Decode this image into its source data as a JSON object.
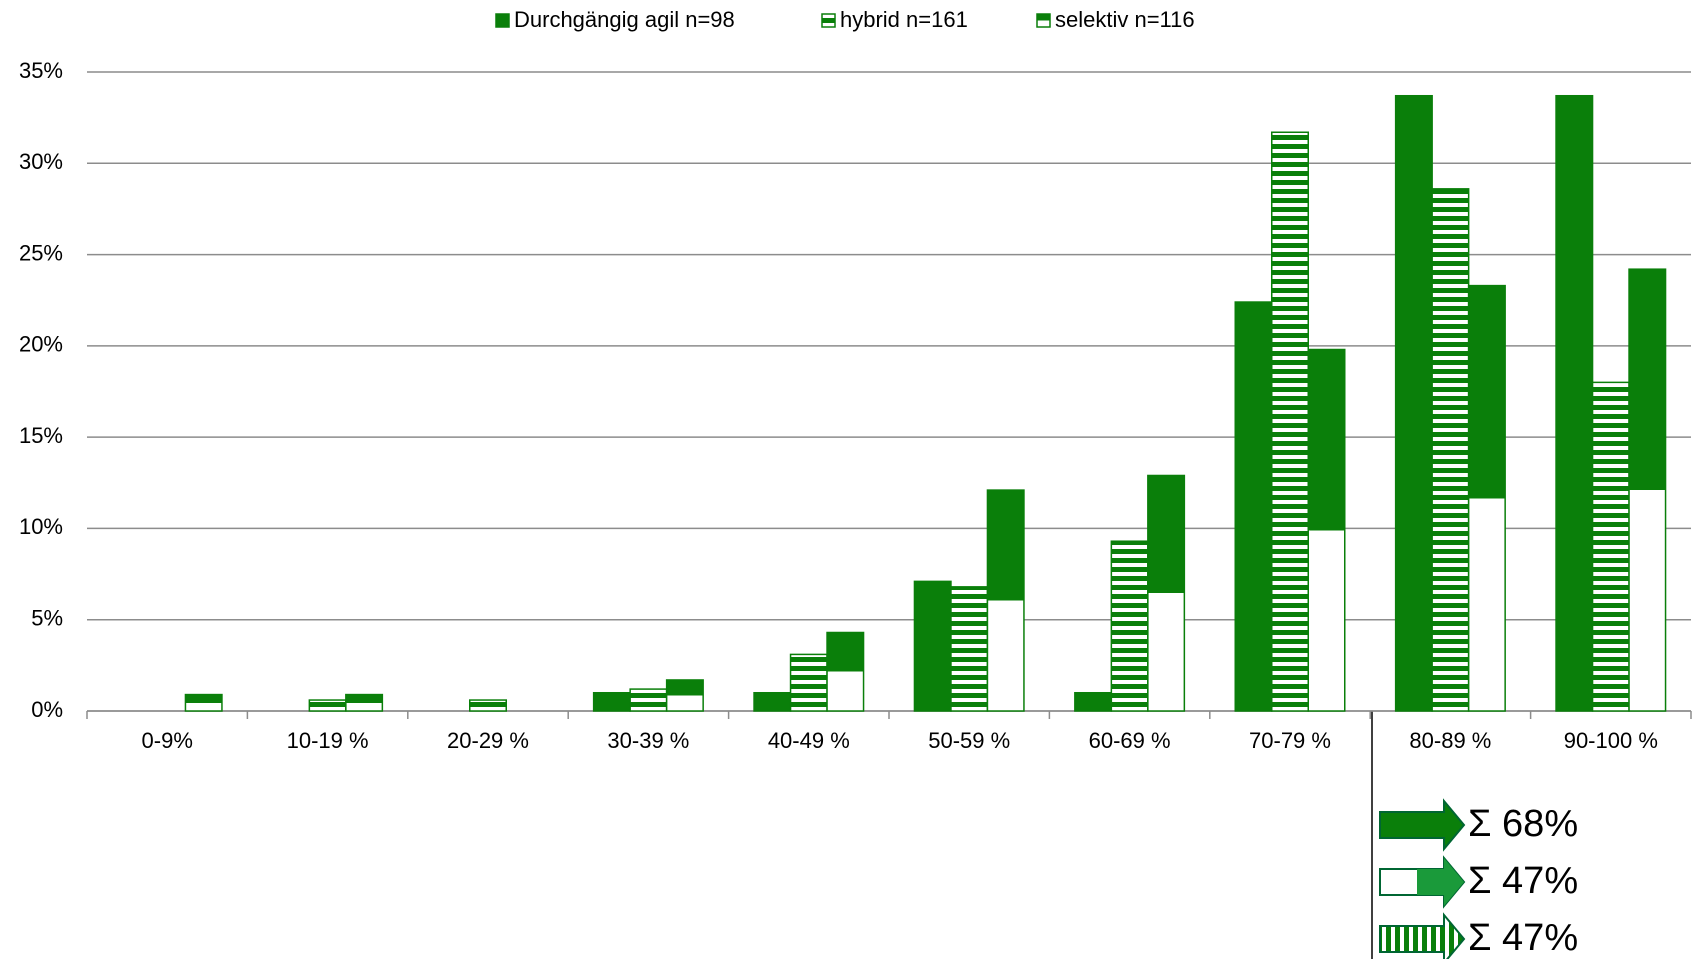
{
  "chart_data": {
    "type": "bar",
    "categories": [
      "0-9%",
      "10-19 %",
      "20-29 %",
      "30-39 %",
      "40-49 %",
      "50-59 %",
      "60-69 %",
      "70-79 %",
      "80-89 %",
      "90-100 %"
    ],
    "series": [
      {
        "name": "Durchgängig agil n=98",
        "color": "#0a7f0a",
        "pattern": "solid",
        "values": [
          0,
          0,
          0,
          1.0,
          1.0,
          7.1,
          1.0,
          22.4,
          33.7,
          33.7
        ]
      },
      {
        "name": "hybrid n=161",
        "color": "#0a7f0a",
        "pattern": "stripes",
        "values": [
          0,
          0.6,
          0.6,
          1.2,
          3.1,
          6.8,
          9.3,
          31.7,
          28.6,
          18.0
        ]
      },
      {
        "name": "selektiv n=116",
        "color": "#0a7f0a",
        "pattern": "half",
        "values": [
          0.9,
          0.9,
          0,
          1.7,
          4.3,
          12.1,
          12.9,
          19.8,
          23.3,
          24.2
        ]
      }
    ],
    "ylim": [
      0,
      35
    ],
    "yticks": [
      {
        "value": 0,
        "label": "0%"
      },
      {
        "value": 5,
        "label": "5%"
      },
      {
        "value": 10,
        "label": "10%"
      },
      {
        "value": 15,
        "label": "15%"
      },
      {
        "value": 20,
        "label": "20%"
      },
      {
        "value": 25,
        "label": "25%"
      },
      {
        "value": 30,
        "label": "30%"
      },
      {
        "value": 35,
        "label": "35%"
      }
    ],
    "grid": true,
    "legend": "top",
    "annotations": [
      "Σ 68%",
      "Σ 47%",
      "Σ 47%"
    ]
  }
}
